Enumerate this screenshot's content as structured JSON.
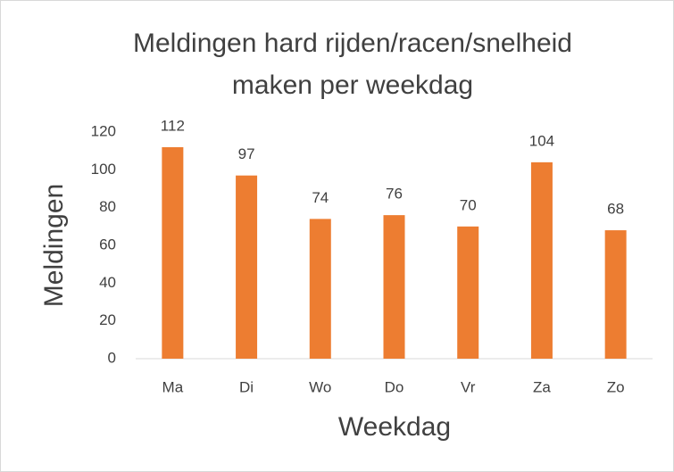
{
  "chart_data": {
    "type": "bar",
    "title": [
      "Meldingen hard rijden/racen/snelheid",
      "maken per weekdag"
    ],
    "xlabel": "Weekdag",
    "ylabel": "Meldingen",
    "categories": [
      "Ma",
      "Di",
      "Wo",
      "Do",
      "Vr",
      "Za",
      "Zo"
    ],
    "values": [
      112,
      97,
      74,
      76,
      70,
      104,
      68
    ],
    "color": "#ed7d31",
    "ylim": [
      0,
      120
    ],
    "yticks": [
      0,
      20,
      40,
      60,
      80,
      100,
      120
    ],
    "grid": false,
    "data_labels": true
  }
}
